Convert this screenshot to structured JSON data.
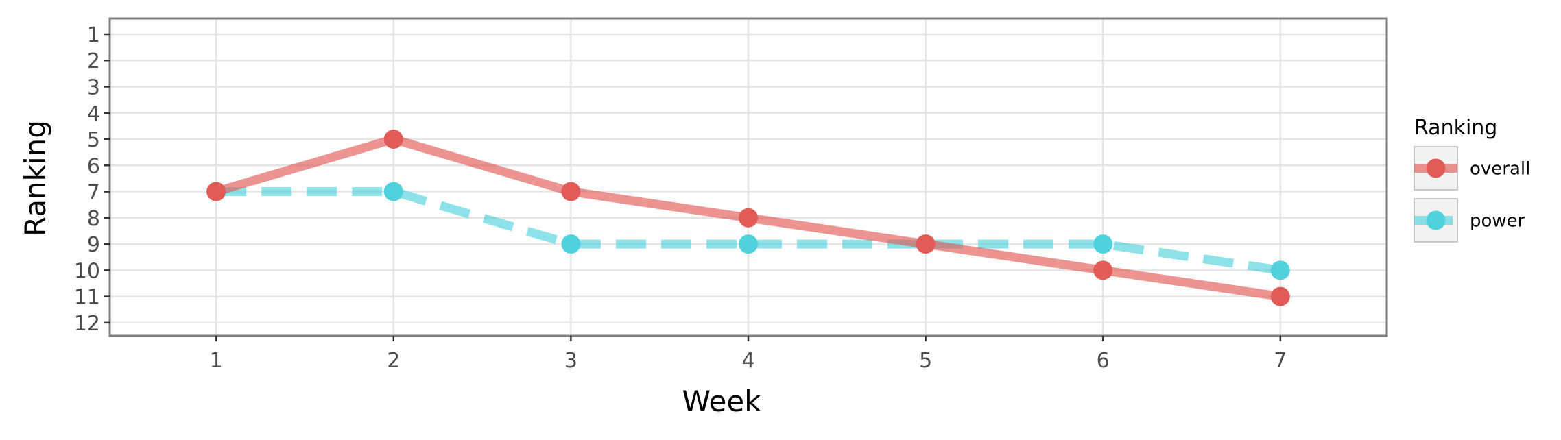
{
  "chart_data": {
    "type": "line",
    "title": "",
    "xlabel": "Week",
    "ylabel": "Ranking",
    "x": [
      1,
      2,
      3,
      4,
      5,
      6,
      7
    ],
    "x_ticks": [
      "1",
      "2",
      "3",
      "4",
      "5",
      "6",
      "7"
    ],
    "y_ticks": [
      "1",
      "2",
      "3",
      "4",
      "5",
      "6",
      "7",
      "8",
      "9",
      "10",
      "11",
      "12"
    ],
    "xlim": [
      0.4,
      7.6
    ],
    "ylim": [
      12.5,
      0.4
    ],
    "y_reversed": true,
    "grid": true,
    "legend": {
      "title": "Ranking",
      "position": "right"
    },
    "series": [
      {
        "name": "overall",
        "values": [
          7,
          5,
          7,
          8,
          9,
          10,
          11
        ],
        "color": "#e15b57",
        "line_style": "solid"
      },
      {
        "name": "power",
        "values": [
          7,
          7,
          9,
          9,
          9,
          9,
          10
        ],
        "color": "#4fd2dc",
        "line_style": "dashed"
      }
    ]
  }
}
